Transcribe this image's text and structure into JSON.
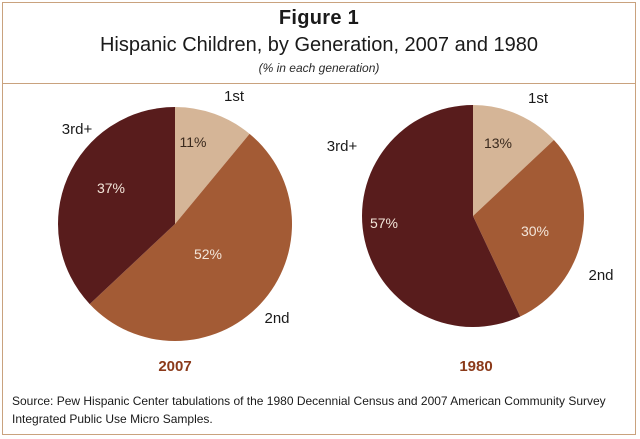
{
  "figure": {
    "label": "Figure 1",
    "title": "Hispanic Children, by Generation, 2007 and 1980",
    "subtitle": "(% in each generation)",
    "source": "Source: Pew Hispanic Center tabulations of the 1980 Decennial Census and 2007 American Community Survey Integrated Public Use Micro Samples."
  },
  "colors": {
    "first": "#d5b597",
    "second": "#a35b35",
    "third": "#581c1c",
    "year_label": "#8b3a1a",
    "border": "#c9a27e"
  },
  "chart_data": [
    {
      "type": "pie",
      "title": "2007",
      "slices": [
        {
          "label": "1st",
          "value": 11,
          "value_label": "11%"
        },
        {
          "label": "2nd",
          "value": 52,
          "value_label": "52%"
        },
        {
          "label": "3rd+",
          "value": 37,
          "value_label": "37%"
        }
      ]
    },
    {
      "type": "pie",
      "title": "1980",
      "slices": [
        {
          "label": "1st",
          "value": 13,
          "value_label": "13%"
        },
        {
          "label": "2nd",
          "value": 30,
          "value_label": "30%"
        },
        {
          "label": "3rd+",
          "value": 57,
          "value_label": "57%"
        }
      ]
    }
  ]
}
